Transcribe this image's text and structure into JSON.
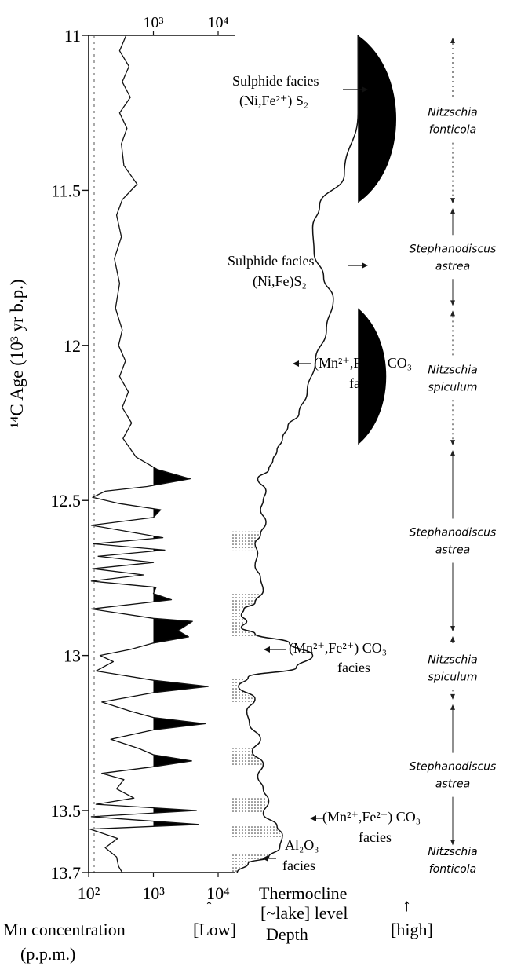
{
  "chart_data": {
    "type": "line",
    "y_axis": {
      "label": "¹⁴C Age (10³ yr b.p.)",
      "ylim": [
        11.0,
        13.7
      ],
      "ticks": [
        {
          "value": 11.0,
          "label": "11"
        },
        {
          "value": 11.5,
          "label": "11.5"
        },
        {
          "value": 12.0,
          "label": "12"
        },
        {
          "value": 12.5,
          "label": "12.5"
        },
        {
          "value": 13.0,
          "label": "13"
        },
        {
          "value": 13.5,
          "label": "13.5"
        },
        {
          "value": 13.7,
          "label": "13.7"
        }
      ]
    },
    "x_axis": {
      "scale": "log",
      "xlim": [
        100,
        10000
      ],
      "label": "Mn concentration",
      "unit": "(p.p.m.)",
      "ticks": [
        {
          "value": 100,
          "label": "10²"
        },
        {
          "value": 1000,
          "label": "10³"
        },
        {
          "value": 10000,
          "label": "10⁴"
        }
      ],
      "top_ticks": [
        {
          "value": 1000,
          "label": "10³"
        },
        {
          "value": 10000,
          "label": "10⁴"
        }
      ]
    },
    "series": [
      {
        "name": "Mn concentration",
        "points": [
          [
            11.0,
            380
          ],
          [
            11.05,
            300
          ],
          [
            11.1,
            420
          ],
          [
            11.15,
            330
          ],
          [
            11.2,
            440
          ],
          [
            11.25,
            300
          ],
          [
            11.3,
            390
          ],
          [
            11.35,
            320
          ],
          [
            11.42,
            350
          ],
          [
            11.48,
            560
          ],
          [
            11.53,
            330
          ],
          [
            11.58,
            270
          ],
          [
            11.65,
            320
          ],
          [
            11.72,
            250
          ],
          [
            11.8,
            300
          ],
          [
            11.88,
            260
          ],
          [
            11.95,
            330
          ],
          [
            12.0,
            290
          ],
          [
            12.05,
            370
          ],
          [
            12.1,
            300
          ],
          [
            12.15,
            410
          ],
          [
            12.2,
            330
          ],
          [
            12.25,
            460
          ],
          [
            12.3,
            340
          ],
          [
            12.36,
            540
          ],
          [
            12.4,
            1150
          ],
          [
            12.43,
            3700
          ],
          [
            12.455,
            800
          ],
          [
            12.47,
            180
          ],
          [
            12.49,
            115
          ],
          [
            12.51,
            300
          ],
          [
            12.53,
            1300
          ],
          [
            12.555,
            1000
          ],
          [
            12.58,
            110
          ],
          [
            12.62,
            1400
          ],
          [
            12.64,
            120
          ],
          [
            12.66,
            1500
          ],
          [
            12.68,
            140
          ],
          [
            12.7,
            1000
          ],
          [
            12.72,
            115
          ],
          [
            12.74,
            700
          ],
          [
            12.76,
            110
          ],
          [
            12.78,
            1100
          ],
          [
            12.8,
            1000
          ],
          [
            12.82,
            1900
          ],
          [
            12.85,
            110
          ],
          [
            12.88,
            1000
          ],
          [
            12.89,
            4000
          ],
          [
            12.92,
            2400
          ],
          [
            12.94,
            3500
          ],
          [
            12.96,
            1000
          ],
          [
            12.98,
            450
          ],
          [
            13.0,
            150
          ],
          [
            13.02,
            240
          ],
          [
            13.05,
            130
          ],
          [
            13.08,
            1000
          ],
          [
            13.1,
            7000
          ],
          [
            13.12,
            1000
          ],
          [
            13.15,
            160
          ],
          [
            13.18,
            450
          ],
          [
            13.2,
            1000
          ],
          [
            13.22,
            6300
          ],
          [
            13.24,
            1000
          ],
          [
            13.27,
            220
          ],
          [
            13.3,
            600
          ],
          [
            13.32,
            1000
          ],
          [
            13.34,
            3900
          ],
          [
            13.36,
            900
          ],
          [
            13.38,
            160
          ],
          [
            13.4,
            350
          ],
          [
            13.43,
            270
          ],
          [
            13.46,
            500
          ],
          [
            13.48,
            130
          ],
          [
            13.5,
            4600
          ],
          [
            13.52,
            110
          ],
          [
            13.545,
            5000
          ],
          [
            13.56,
            105
          ],
          [
            13.59,
            280
          ],
          [
            13.62,
            180
          ],
          [
            13.65,
            270
          ],
          [
            13.68,
            290
          ],
          [
            13.7,
            330
          ]
        ]
      },
      {
        "name": "Thermocline [~lake] level",
        "points": [
          [
            11.0,
            0.95
          ],
          [
            11.25,
            0.95
          ],
          [
            11.45,
            0.85
          ],
          [
            11.55,
            0.67
          ],
          [
            11.62,
            0.62
          ],
          [
            11.7,
            0.63
          ],
          [
            11.78,
            0.7
          ],
          [
            11.85,
            0.77
          ],
          [
            11.95,
            0.72
          ],
          [
            12.05,
            0.64
          ],
          [
            12.15,
            0.58
          ],
          [
            12.22,
            0.52
          ],
          [
            12.26,
            0.44
          ],
          [
            12.3,
            0.4
          ],
          [
            12.34,
            0.36
          ],
          [
            12.37,
            0.33
          ],
          [
            12.4,
            0.3
          ],
          [
            12.43,
            0.22
          ],
          [
            12.47,
            0.28
          ],
          [
            12.5,
            0.26
          ],
          [
            12.53,
            0.24
          ],
          [
            12.57,
            0.28
          ],
          [
            12.61,
            0.24
          ],
          [
            12.64,
            0.2
          ],
          [
            12.67,
            0.22
          ],
          [
            12.71,
            0.2
          ],
          [
            12.75,
            0.24
          ],
          [
            12.79,
            0.26
          ],
          [
            12.83,
            0.2
          ],
          [
            12.85,
            0.12
          ],
          [
            12.87,
            0.1
          ],
          [
            12.89,
            0.14
          ],
          [
            12.91,
            0.1
          ],
          [
            12.93,
            0.2
          ],
          [
            12.96,
            0.45
          ],
          [
            13.0,
            0.62
          ],
          [
            13.04,
            0.5
          ],
          [
            13.07,
            0.15
          ],
          [
            13.1,
            0.08
          ],
          [
            13.14,
            0.2
          ],
          [
            13.18,
            0.14
          ],
          [
            13.22,
            0.16
          ],
          [
            13.27,
            0.24
          ],
          [
            13.31,
            0.18
          ],
          [
            13.35,
            0.26
          ],
          [
            13.39,
            0.22
          ],
          [
            13.43,
            0.26
          ],
          [
            13.47,
            0.3
          ],
          [
            13.51,
            0.26
          ],
          [
            13.55,
            0.36
          ],
          [
            13.58,
            0.4
          ],
          [
            13.62,
            0.38
          ],
          [
            13.65,
            0.3
          ],
          [
            13.67,
            0.15
          ],
          [
            13.7,
            0.07
          ]
        ]
      }
    ],
    "bottom_labels": {
      "thermocline": "Thermocline",
      "lake_level": "[~lake] level",
      "depth": "Depth",
      "low": "[Low]",
      "high": "[high]",
      "arrow": "↑"
    },
    "annotations": [
      {
        "text_lines": [
          "Sulphide facies",
          "(Ni,Fe²⁺) S₂"
        ]
      },
      {
        "text_lines": [
          "Sulphide facies",
          "(Ni,Fe)S₂"
        ]
      },
      {
        "text_lines": [
          "(Mn²⁺,Fe²⁺) CO₃",
          "facies"
        ]
      },
      {
        "text_lines": [
          "(Mn²⁺,Fe²⁺) CO₃",
          "facies"
        ]
      },
      {
        "text_lines": [
          "(Mn²⁺,Fe²⁺) CO₃",
          "facies"
        ]
      },
      {
        "text_lines": [
          "Al₂O₃",
          "facies"
        ]
      }
    ],
    "diatom_zones": [
      {
        "lines": [
          "Nitzschia",
          "fonticola"
        ],
        "from": 11.0,
        "to": 11.55
      },
      {
        "lines": [
          "Stephanodiscus",
          "astrea"
        ],
        "from": 11.55,
        "to": 11.88
      },
      {
        "lines": [
          "Nitzschia",
          "spiculum"
        ],
        "from": 11.88,
        "to": 12.33
      },
      {
        "lines": [
          "Stephanodiscus",
          "astrea"
        ],
        "from": 12.33,
        "to": 12.93
      },
      {
        "lines": [
          "Nitzschia",
          "spiculum"
        ],
        "from": 12.93,
        "to": 13.15
      },
      {
        "lines": [
          "Stephanodiscus",
          "astrea"
        ],
        "from": 13.15,
        "to": 13.62
      },
      {
        "lines": [
          "Nitzschia",
          "fonticola"
        ],
        "from": 13.62,
        "to": 13.7
      }
    ]
  }
}
